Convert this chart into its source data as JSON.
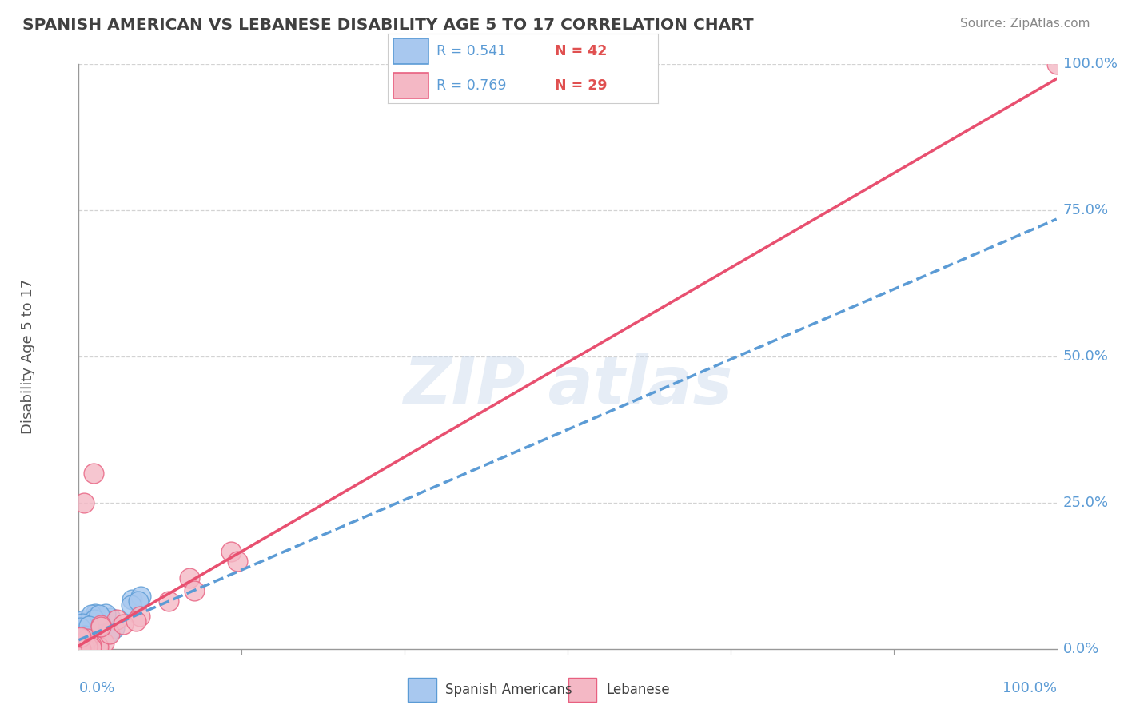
{
  "title": "SPANISH AMERICAN VS LEBANESE DISABILITY AGE 5 TO 17 CORRELATION CHART",
  "source": "Source: ZipAtlas.com",
  "ylabel": "Disability Age 5 to 17",
  "ytick_labels": [
    "0.0%",
    "25.0%",
    "50.0%",
    "75.0%",
    "100.0%"
  ],
  "ytick_values": [
    0,
    25,
    50,
    75,
    100
  ],
  "xtick_label_left": "0.0%",
  "xtick_label_right": "100.0%",
  "xlim": [
    0,
    100
  ],
  "ylim": [
    0,
    100
  ],
  "legend_label1": "Spanish Americans",
  "legend_label2": "Lebanese",
  "r1": 0.541,
  "n1": 42,
  "r2": 0.769,
  "n2": 29,
  "color_blue_fill": "#A8C8EF",
  "color_blue_edge": "#5B9BD5",
  "color_pink_fill": "#F4B8C5",
  "color_pink_edge": "#E86080",
  "color_blue_line": "#5B9BD5",
  "color_pink_line": "#E85070",
  "color_grid": "#C8C8C8",
  "color_title": "#404040",
  "color_axis_blue": "#5B9BD5",
  "color_r_label": "#5B9BD5",
  "color_n_label": "#E05050",
  "watermark_color": "#C8D8EC",
  "slope_blue": 0.72,
  "intercept_blue": 1.5,
  "slope_pink": 0.97,
  "intercept_pink": 0.5,
  "sa_seed": 42,
  "leb_seed": 77
}
